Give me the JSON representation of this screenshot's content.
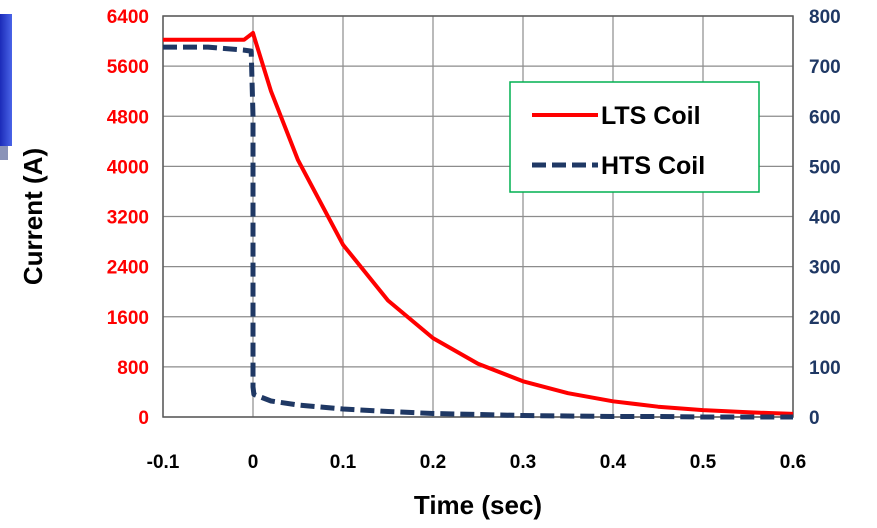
{
  "chart_data": {
    "type": "line",
    "title": "",
    "xlabel": "Time (sec)",
    "ylabel": "Current (A)",
    "y2label": "",
    "xlim": [
      -0.1,
      0.6
    ],
    "ylim": [
      0,
      6400
    ],
    "y2lim": [
      0,
      800
    ],
    "x_ticks": [
      "-0.1",
      "0",
      "0.1",
      "0.2",
      "0.3",
      "0.4",
      "0.5",
      "0.6"
    ],
    "y_ticks_left": [
      "0",
      "800",
      "1600",
      "2400",
      "3200",
      "4000",
      "4800",
      "5600",
      "6400"
    ],
    "y_ticks_right": [
      "0",
      "100",
      "200",
      "300",
      "400",
      "500",
      "600",
      "700",
      "800"
    ],
    "grid": true,
    "legend_position": "top-right",
    "series": [
      {
        "name": "LTS Coil",
        "axis": "left",
        "color": "#ff0000",
        "style": "solid",
        "x": [
          -0.1,
          -0.05,
          -0.01,
          0,
          0.001,
          0.02,
          0.05,
          0.1,
          0.15,
          0.2,
          0.25,
          0.3,
          0.35,
          0.4,
          0.45,
          0.5,
          0.55,
          0.6
        ],
        "y": [
          6020,
          6020,
          6020,
          6130,
          6080,
          5200,
          4100,
          2750,
          1860,
          1260,
          850,
          570,
          380,
          250,
          165,
          110,
          75,
          50
        ]
      },
      {
        "name": "HTS Coil",
        "axis": "right",
        "color": "#1f3864",
        "style": "dashed",
        "x": [
          -0.1,
          -0.05,
          -0.01,
          -0.002,
          0,
          0.0,
          0.001,
          0.02,
          0.05,
          0.1,
          0.15,
          0.2,
          0.25,
          0.3,
          0.35,
          0.4,
          0.45,
          0.5,
          0.55,
          0.6
        ],
        "y": [
          738,
          738,
          732,
          730,
          600,
          60,
          45,
          32,
          24,
          16,
          11,
          7,
          5,
          3,
          2,
          1,
          1,
          0,
          0,
          0
        ]
      }
    ]
  }
}
